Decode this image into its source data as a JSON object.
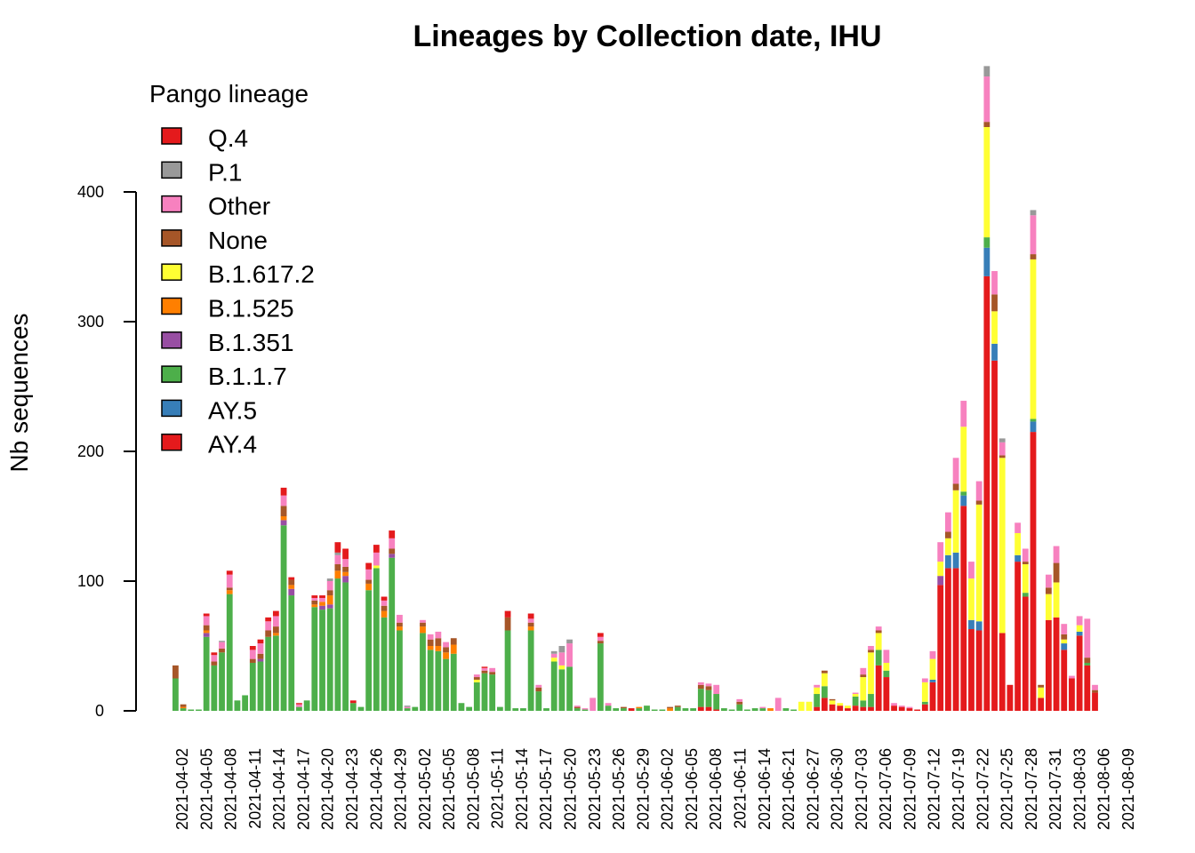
{
  "chart_data": {
    "type": "bar",
    "stacked": true,
    "title": "Lineages by Collection date, IHU",
    "xlabel": "",
    "ylabel": "Nb sequences",
    "ylim": [
      0,
      490
    ],
    "y_ticks": [
      0,
      100,
      200,
      300,
      400
    ],
    "legend": {
      "title": "Pango lineage",
      "placement": "top-left",
      "entries": [
        "Q.4",
        "P.1",
        "Other",
        "None",
        "B.1.617.2",
        "B.1.525",
        "B.1.351",
        "B.1.1.7",
        "AY.5",
        "AY.4"
      ]
    },
    "colors": {
      "Q.4": "#e41a1c",
      "P.1": "#999999",
      "Other": "#f781bf",
      "None": "#a65628",
      "B.1.617.2": "#ffff33",
      "B.1.525": "#ff7f00",
      "B.1.351": "#984ea3",
      "B.1.1.7": "#4daf4a",
      "AY.5": "#377eb8",
      "AY.4": "#e41a1c"
    },
    "stack_order": [
      "AY.4",
      "AY.5",
      "B.1.1.7",
      "B.1.351",
      "B.1.525",
      "B.1.617.2",
      "None",
      "Other",
      "P.1",
      "Q.4"
    ],
    "x_tick_labels": [
      "2021-04-02",
      "2021-04-05",
      "2021-04-08",
      "2021-04-11",
      "2021-04-14",
      "2021-04-17",
      "2021-04-20",
      "2021-04-23",
      "2021-04-26",
      "2021-04-29",
      "2021-05-02",
      "2021-05-05",
      "2021-05-08",
      "2021-05-11",
      "2021-05-14",
      "2021-05-17",
      "2021-05-20",
      "2021-05-23",
      "2021-05-26",
      "2021-05-29",
      "2021-06-02",
      "2021-06-05",
      "2021-06-08",
      "2021-06-11",
      "2021-06-14",
      "2021-06-21",
      "2021-06-27",
      "2021-06-30",
      "2021-07-03",
      "2021-07-06",
      "2021-07-09",
      "2021-07-12",
      "2021-07-19",
      "2021-07-22",
      "2021-07-25",
      "2021-07-28",
      "2021-07-31",
      "2021-08-03",
      "2021-08-06",
      "2021-08-09"
    ],
    "bars": [
      {
        "AY.4": 0,
        "AY.5": 0,
        "B.1.1.7": 25,
        "B.1.351": 0,
        "B.1.525": 0,
        "B.1.617.2": 0,
        "None": 10,
        "Other": 0,
        "P.1": 0,
        "Q.4": 0
      },
      {
        "B.1.1.7": 2,
        "None": 2,
        "B.1.525": 1
      },
      {
        "B.1.1.7": 1
      },
      {
        "B.1.1.7": 1
      },
      {
        "B.1.1.7": 57,
        "B.1.351": 3,
        "B.1.525": 2,
        "None": 4,
        "Other": 7,
        "Q.4": 2
      },
      {
        "B.1.1.7": 35,
        "None": 3,
        "Other": 5,
        "Q.4": 2
      },
      {
        "B.1.1.7": 45,
        "None": 3,
        "Other": 5,
        "P.1": 1
      },
      {
        "B.1.1.7": 90,
        "B.1.525": 3,
        "None": 2,
        "Other": 10,
        "Q.4": 3
      },
      {
        "B.1.1.7": 8
      },
      {
        "B.1.1.7": 12
      },
      {
        "B.1.1.7": 37,
        "None": 3,
        "Other": 7,
        "Q.4": 3
      },
      {
        "B.1.1.7": 38,
        "B.1.351": 2,
        "None": 4,
        "Other": 8,
        "Q.4": 3
      },
      {
        "B.1.1.7": 57,
        "None": 5,
        "Other": 7,
        "Q.4": 3
      },
      {
        "B.1.1.7": 58,
        "B.1.525": 2,
        "None": 5,
        "Other": 8,
        "Q.4": 4
      },
      {
        "B.1.1.7": 143,
        "B.1.351": 4,
        "B.1.525": 3,
        "None": 8,
        "Other": 8,
        "Q.4": 6
      },
      {
        "B.1.1.7": 89,
        "B.1.351": 5,
        "B.1.525": 3,
        "None": 4,
        "Q.4": 2
      },
      {
        "B.1.1.7": 3,
        "Other": 2,
        "Q.4": 1
      },
      {
        "B.1.1.7": 8
      },
      {
        "B.1.1.7": 80,
        "B.1.525": 2,
        "None": 3,
        "Other": 2,
        "Q.4": 2
      },
      {
        "B.1.1.7": 78,
        "B.1.351": 3,
        "B.1.525": 3,
        "Other": 3,
        "Q.4": 2
      },
      {
        "B.1.1.7": 79,
        "B.1.351": 3,
        "B.1.525": 7,
        "None": 4,
        "Other": 7,
        "P.1": 2
      },
      {
        "B.1.1.7": 102,
        "B.1.525": 6,
        "None": 5,
        "Other": 7,
        "P.1": 2,
        "Q.4": 8
      },
      {
        "B.1.1.7": 99,
        "B.1.351": 5,
        "B.1.525": 3,
        "None": 4,
        "Other": 6,
        "Q.4": 8
      },
      {
        "B.1.1.7": 6,
        "Q.4": 2
      },
      {
        "B.1.1.7": 3
      },
      {
        "B.1.1.7": 93,
        "B.1.525": 5,
        "None": 3,
        "Other": 8,
        "Q.4": 5
      },
      {
        "B.1.1.7": 110,
        "B.1.617.2": 2,
        "Other": 10,
        "Q.4": 6
      },
      {
        "B.1.1.7": 72,
        "B.1.525": 5,
        "None": 4,
        "Other": 4,
        "Q.4": 3
      },
      {
        "B.1.1.7": 118,
        "B.1.351": 3,
        "None": 4,
        "Other": 8,
        "Q.4": 6
      },
      {
        "B.1.1.7": 62,
        "B.1.525": 3,
        "None": 3,
        "Other": 6
      },
      {
        "B.1.1.7": 2,
        "Other": 1,
        "P.1": 1
      },
      {
        "B.1.1.7": 3
      },
      {
        "B.1.1.7": 60,
        "B.1.525": 5,
        "None": 3,
        "Other": 2
      },
      {
        "B.1.1.7": 47,
        "B.1.525": 3,
        "None": 5,
        "Other": 4
      },
      {
        "B.1.1.7": 46,
        "B.1.525": 4,
        "None": 6,
        "Other": 5
      },
      {
        "B.1.1.7": 40,
        "B.1.525": 5,
        "None": 4,
        "Other": 4
      },
      {
        "B.1.1.7": 44,
        "B.1.525": 7,
        "None": 5
      },
      {
        "B.1.1.7": 6
      },
      {
        "B.1.1.7": 3
      },
      {
        "B.1.1.7": 22,
        "B.1.617.2": 2,
        "None": 2,
        "Other": 2
      },
      {
        "B.1.1.7": 29,
        "None": 2,
        "Other": 2,
        "Q.4": 1
      },
      {
        "B.1.1.7": 28,
        "None": 2,
        "Other": 3
      },
      {
        "B.1.1.7": 3
      },
      {
        "B.1.1.7": 62,
        "None": 10,
        "Q.4": 5
      },
      {
        "B.1.1.7": 2
      },
      {
        "B.1.1.7": 2
      },
      {
        "B.1.1.7": 62,
        "B.1.525": 3,
        "None": 3,
        "Other": 3,
        "Q.4": 4
      },
      {
        "B.1.1.7": 15,
        "None": 3,
        "Other": 2
      },
      {
        "B.1.1.7": 2
      },
      {
        "B.1.1.7": 38,
        "B.1.617.2": 3,
        "Other": 3,
        "P.1": 2
      },
      {
        "B.1.1.7": 32,
        "B.1.617.2": 3,
        "Other": 10,
        "P.1": 5
      },
      {
        "B.1.1.7": 34,
        "Other": 18,
        "P.1": 3
      },
      {
        "B.1.1.7": 2,
        "None": 1,
        "Other": 1
      },
      {
        "B.1.1.7": 1,
        "Other": 1
      },
      {
        "Other": 10
      },
      {
        "B.1.1.7": 52,
        "None": 2,
        "Other": 3,
        "Q.4": 3
      },
      {
        "B.1.1.7": 4,
        "Other": 2
      },
      {
        "B.1.1.7": 2
      },
      {
        "B.1.1.7": 2,
        "None": 1
      },
      {
        "AY.4": 2
      },
      {
        "B.1.1.7": 2,
        "B.1.525": 1
      },
      {
        "B.1.1.7": 4
      },
      {
        "B.1.1.7": 1
      },
      {
        "B.1.1.7": 1
      },
      {
        "B.1.525": 2,
        "None": 1
      },
      {
        "B.1.1.7": 3,
        "None": 1
      },
      {
        "B.1.1.7": 2
      },
      {
        "B.1.1.7": 2
      },
      {
        "B.1.1.7": 14,
        "None": 3,
        "Other": 2,
        "AY.4": 3
      },
      {
        "AY.4": 3,
        "B.1.1.7": 13,
        "None": 3,
        "Other": 2
      },
      {
        "B.1.1.7": 12,
        "Other": 7,
        "AY.4": 1
      },
      {
        "B.1.1.7": 2
      },
      {
        "B.1.1.7": 1
      },
      {
        "B.1.1.7": 5,
        "None": 2,
        "Other": 2
      },
      {
        "B.1.1.7": 1
      },
      {
        "B.1.1.7": 2
      },
      {
        "B.1.1.7": 2,
        "Other": 1
      },
      {
        "B.1.525": 2
      },
      {
        "Other": 10
      },
      {
        "B.1.1.7": 2
      },
      {
        "B.1.1.7": 1
      },
      {
        "B.1.617.2": 7
      },
      {
        "B.1.617.2": 7
      },
      {
        "AY.4": 3,
        "B.1.1.7": 10,
        "B.1.617.2": 5,
        "Other": 2
      },
      {
        "AY.4": 10,
        "B.1.1.7": 9,
        "B.1.617.2": 10,
        "None": 2
      },
      {
        "AY.4": 5,
        "B.1.617.2": 3,
        "None": 1
      },
      {
        "AY.4": 4,
        "B.1.617.2": 2
      },
      {
        "AY.4": 2,
        "B.1.617.2": 2
      },
      {
        "AY.4": 4,
        "B.1.1.7": 7,
        "B.1.617.2": 2,
        "Other": 1
      },
      {
        "AY.4": 3,
        "B.1.1.7": 5,
        "B.1.617.2": 18,
        "None": 2,
        "Other": 5
      },
      {
        "AY.4": 3,
        "B.1.1.7": 10,
        "B.1.617.2": 32,
        "None": 2,
        "Other": 3
      },
      {
        "AY.4": 35,
        "B.1.1.7": 12,
        "B.1.617.2": 13,
        "None": 2,
        "Other": 3
      },
      {
        "AY.4": 26,
        "B.1.1.7": 5,
        "B.1.617.2": 6,
        "Other": 10
      },
      {
        "AY.4": 4,
        "Other": 2
      },
      {
        "AY.4": 3,
        "Other": 1
      },
      {
        "AY.4": 2,
        "Other": 1
      },
      {
        "AY.4": 1
      },
      {
        "AY.4": 5,
        "B.1.1.7": 2,
        "B.1.617.2": 15,
        "Other": 3
      },
      {
        "AY.4": 22,
        "AY.5": 2,
        "B.1.617.2": 16,
        "Other": 6
      },
      {
        "AY.4": 97,
        "B.1.351": 7,
        "B.1.617.2": 11,
        "Other": 15
      },
      {
        "AY.4": 110,
        "AY.5": 10,
        "B.1.617.2": 13,
        "None": 5,
        "Other": 15
      },
      {
        "AY.4": 110,
        "AY.5": 12,
        "B.1.617.2": 48,
        "None": 5,
        "Other": 20
      },
      {
        "AY.4": 158,
        "AY.5": 8,
        "B.1.1.7": 3,
        "B.1.617.2": 50,
        "Other": 20
      },
      {
        "AY.4": 63,
        "AY.5": 7,
        "B.1.617.2": 32,
        "Other": 13
      },
      {
        "AY.4": 62,
        "AY.5": 7,
        "B.1.617.2": 90,
        "None": 3,
        "Other": 15
      },
      {
        "AY.4": 335,
        "AY.5": 22,
        "B.1.1.7": 8,
        "B.1.617.2": 85,
        "None": 4,
        "Other": 35,
        "P.1": 8
      },
      {
        "AY.4": 270,
        "AY.5": 13,
        "B.1.617.2": 25,
        "None": 13,
        "Other": 18
      },
      {
        "AY.4": 60,
        "B.1.617.2": 135,
        "None": 2,
        "Other": 10,
        "P.1": 3
      },
      {
        "AY.4": 20
      },
      {
        "AY.4": 115,
        "AY.5": 5,
        "B.1.617.2": 17,
        "Other": 8
      },
      {
        "AY.4": 88,
        "B.1.1.7": 3,
        "B.1.617.2": 22,
        "None": 2,
        "Other": 10
      },
      {
        "AY.4": 215,
        "AY.5": 8,
        "B.1.1.7": 2,
        "B.1.617.2": 123,
        "None": 4,
        "Other": 30,
        "P.1": 4
      },
      {
        "AY.4": 10,
        "B.1.617.2": 8,
        "None": 2
      },
      {
        "AY.4": 70,
        "B.1.617.2": 20,
        "None": 5,
        "Other": 10
      },
      {
        "AY.4": 72,
        "B.1.617.2": 27,
        "None": 15,
        "Other": 13
      },
      {
        "AY.4": 47,
        "AY.5": 5,
        "B.1.617.2": 3,
        "None": 4,
        "Other": 8
      },
      {
        "AY.4": 25,
        "Other": 2
      },
      {
        "AY.4": 58,
        "AY.5": 3,
        "B.1.617.2": 5,
        "Other": 7
      },
      {
        "AY.4": 35,
        "B.1.1.7": 2,
        "None": 4,
        "Other": 30
      },
      {
        "AY.4": 14,
        "None": 2,
        "Other": 4
      }
    ]
  }
}
